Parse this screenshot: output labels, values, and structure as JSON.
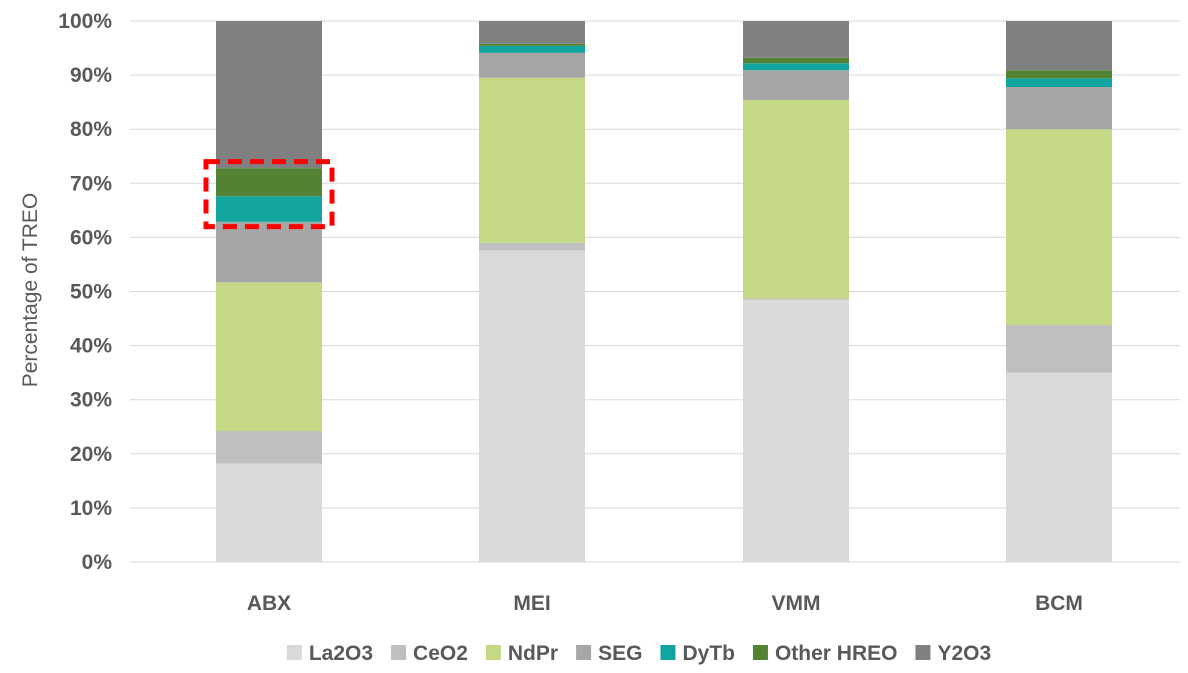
{
  "chart_data": {
    "type": "bar",
    "stacked": true,
    "title": "",
    "xlabel": "",
    "ylabel": "Percentage of TREO",
    "ylim": [
      0,
      100
    ],
    "yticks": [
      "0%",
      "10%",
      "20%",
      "30%",
      "40%",
      "50%",
      "60%",
      "70%",
      "80%",
      "90%",
      "100%"
    ],
    "grid": true,
    "legend_position": "bottom",
    "categories": [
      "ABX",
      "MEI",
      "VMM",
      "BCM"
    ],
    "series": [
      {
        "name": "La2O3",
        "color": "#d9d9d9",
        "values": [
          18.2,
          57.6,
          48.5,
          35.0
        ]
      },
      {
        "name": "CeO2",
        "color": "#bfbfbf",
        "values": [
          6.0,
          1.4,
          0.2,
          8.8
        ]
      },
      {
        "name": "NdPr",
        "color": "#c4d886",
        "values": [
          27.5,
          30.5,
          36.7,
          36.2
        ]
      },
      {
        "name": "SEG",
        "color": "#a6a6a6",
        "values": [
          11.2,
          4.6,
          5.5,
          7.8
        ]
      },
      {
        "name": "DyTb",
        "color": "#12a5a0",
        "values": [
          4.7,
          1.3,
          1.3,
          1.6
        ]
      },
      {
        "name": "Other HREO",
        "color": "#548235",
        "values": [
          5.2,
          0.4,
          1.0,
          1.5
        ]
      },
      {
        "name": "Y2O3",
        "color": "#808080",
        "values": [
          27.2,
          4.2,
          6.8,
          9.1
        ]
      }
    ],
    "annotation": {
      "category": "ABX",
      "y_range": [
        62,
        74
      ],
      "style": "dashed-box",
      "color": "#ff0000"
    }
  }
}
